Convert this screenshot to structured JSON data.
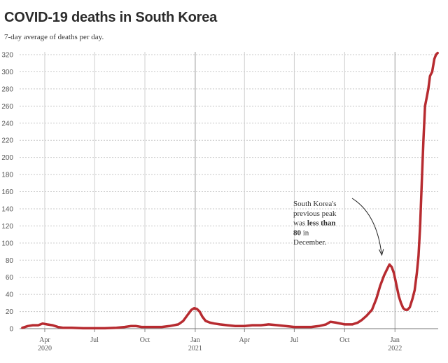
{
  "header": {
    "title": "COVID-19 deaths in South Korea",
    "subtitle": "7-day average of deaths per day."
  },
  "chart_data": {
    "type": "line",
    "title": "COVID-19 deaths in South Korea",
    "subtitle": "7-day average of deaths per day.",
    "xlabel": "",
    "ylabel": "",
    "ylim": [
      0,
      320
    ],
    "xlim": [
      "2020-02-15",
      "2022-03-21"
    ],
    "y_ticks": [
      "0",
      "20",
      "40",
      "60",
      "80",
      "100",
      "120",
      "140",
      "160",
      "180",
      "200",
      "220",
      "240",
      "260",
      "280",
      "300",
      "320"
    ],
    "y_tick_values": [
      0,
      20,
      40,
      60,
      80,
      100,
      120,
      140,
      160,
      180,
      200,
      220,
      240,
      260,
      280,
      300,
      320
    ],
    "x_ticks": [
      {
        "date": "2020-04-01",
        "label": "Apr",
        "year": "2020"
      },
      {
        "date": "2020-07-01",
        "label": "Jul",
        "year": ""
      },
      {
        "date": "2020-10-01",
        "label": "Oct",
        "year": ""
      },
      {
        "date": "2021-01-01",
        "label": "Jan",
        "year": "2021"
      },
      {
        "date": "2021-04-01",
        "label": "Apr",
        "year": ""
      },
      {
        "date": "2021-07-01",
        "label": "Jul",
        "year": ""
      },
      {
        "date": "2021-10-01",
        "label": "Oct",
        "year": ""
      },
      {
        "date": "2022-01-01",
        "label": "Jan",
        "year": "2022"
      }
    ],
    "grid": true,
    "line_color": "#b72b30",
    "annotation": {
      "lines": [
        [
          {
            "t": "South Korea's",
            "b": false
          }
        ],
        [
          {
            "t": "previous peak",
            "b": false
          }
        ],
        [
          {
            "t": "was ",
            "b": false
          },
          {
            "t": "less than",
            "b": true
          }
        ],
        [
          {
            "t": "80",
            "b": true
          },
          {
            "t": " in",
            "b": false
          }
        ],
        [
          {
            "t": "December.",
            "b": false
          }
        ]
      ]
    },
    "series": [
      {
        "x": [
          "2020-02-20",
          "2020-03-01",
          "2020-03-10",
          "2020-03-20",
          "2020-03-28",
          "2020-04-05",
          "2020-04-15",
          "2020-04-25",
          "2020-05-05",
          "2020-05-20",
          "2020-06-10",
          "2020-07-01",
          "2020-07-20",
          "2020-08-10",
          "2020-08-25",
          "2020-09-05",
          "2020-09-15",
          "2020-09-25",
          "2020-10-05",
          "2020-10-20",
          "2020-11-01",
          "2020-11-15",
          "2020-12-01",
          "2020-12-10",
          "2020-12-18",
          "2020-12-25",
          "2020-12-30",
          "2021-01-04",
          "2021-01-09",
          "2021-01-14",
          "2021-01-20",
          "2021-01-28",
          "2021-02-05",
          "2021-02-15",
          "2021-03-01",
          "2021-03-15",
          "2021-04-01",
          "2021-04-15",
          "2021-05-01",
          "2021-05-15",
          "2021-06-01",
          "2021-06-15",
          "2021-07-01",
          "2021-07-15",
          "2021-08-01",
          "2021-08-15",
          "2021-08-28",
          "2021-09-05",
          "2021-09-15",
          "2021-10-01",
          "2021-10-15",
          "2021-10-25",
          "2021-11-01",
          "2021-11-10",
          "2021-11-20",
          "2021-11-28",
          "2021-12-05",
          "2021-12-12",
          "2021-12-18",
          "2021-12-22",
          "2021-12-26",
          "2021-12-30",
          "2022-01-04",
          "2022-01-08",
          "2022-01-12",
          "2022-01-16",
          "2022-01-20",
          "2022-01-24",
          "2022-01-28",
          "2022-02-02",
          "2022-02-06",
          "2022-02-10",
          "2022-02-13",
          "2022-02-16",
          "2022-02-19",
          "2022-02-22",
          "2022-02-25",
          "2022-02-28",
          "2022-03-03",
          "2022-03-06",
          "2022-03-10",
          "2022-03-14",
          "2022-03-17",
          "2022-03-20"
        ],
        "y": [
          1,
          3,
          4,
          4,
          6,
          5,
          4,
          2,
          1,
          1,
          0.5,
          0.5,
          0.5,
          1,
          2,
          3,
          3,
          2,
          2,
          2,
          2,
          3,
          5,
          9,
          16,
          22,
          24,
          23,
          20,
          14,
          9,
          7,
          6,
          5,
          4,
          3,
          3,
          4,
          4,
          5,
          4,
          3,
          2,
          2,
          2,
          3,
          5,
          8,
          7,
          5,
          5,
          7,
          10,
          15,
          22,
          35,
          50,
          62,
          70,
          75,
          72,
          65,
          50,
          38,
          30,
          24,
          22,
          22,
          25,
          35,
          45,
          65,
          85,
          120,
          170,
          220,
          260,
          270,
          280,
          295,
          300,
          315,
          320,
          322
        ]
      }
    ]
  }
}
